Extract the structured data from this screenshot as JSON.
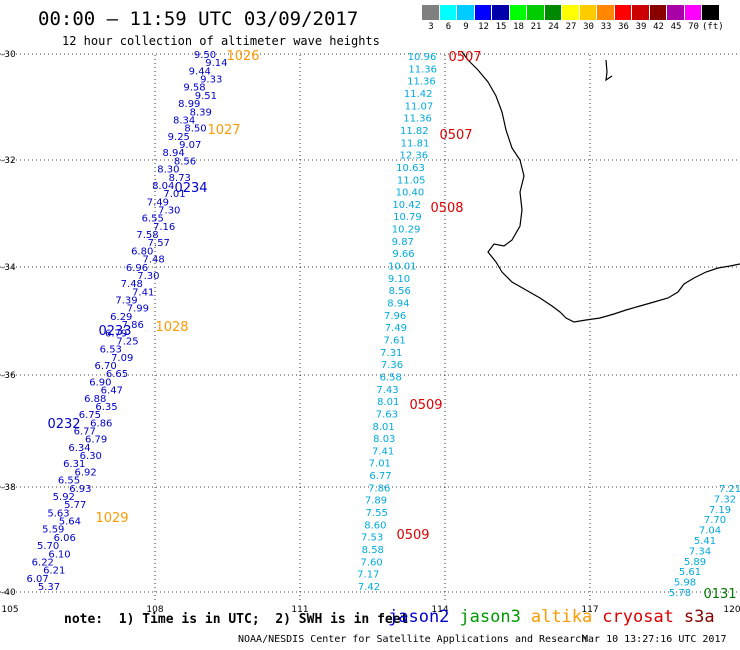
{
  "title": "00:00 – 11:59 UTC 03/09/2017",
  "subtitle": "12 hour collection of altimeter wave heights",
  "colorbar": {
    "labels": [
      "3",
      "6",
      "9",
      "12",
      "15",
      "18",
      "21",
      "24",
      "27",
      "30",
      "33",
      "36",
      "39",
      "42",
      "45",
      "70",
      "(ft)"
    ],
    "colors": [
      "#808080",
      "#00ffff",
      "#00ccff",
      "#0000ff",
      "#0000aa",
      "#00ff00",
      "#00cc00",
      "#008800",
      "#ffff00",
      "#ffcc00",
      "#ff8800",
      "#ff0000",
      "#cc0000",
      "#880000",
      "#aa00aa",
      "#ff00ff",
      "#000000"
    ]
  },
  "axes": {
    "lon_labels": [
      "105",
      "108",
      "111",
      "114",
      "117",
      "120"
    ],
    "lat_labels": [
      "-30",
      "-32",
      "-34",
      "-36",
      "-38",
      "-40"
    ]
  },
  "tracks": [
    {
      "name": "track-A",
      "color": "#0000cc",
      "values": [
        "9.50",
        "9.14",
        "9.44",
        "9.33",
        "9.58",
        "9.51",
        "8.99",
        "8.39",
        "8.34",
        "8.50",
        "9.25",
        "9.07",
        "8.94",
        "8.56",
        "8.30",
        "8.73",
        "8.04",
        "7.01",
        "7.49",
        "7.30",
        "6.55",
        "7.16",
        "7.58",
        "7.57",
        "6.80",
        "7.48",
        "6.96",
        "7.30",
        "7.48",
        "7.41",
        "7.39",
        "7.99",
        "6.29",
        "7.86",
        "6.79",
        "7.25",
        "6.53",
        "7.09",
        "6.70",
        "6.65",
        "6.90",
        "6.47",
        "6.88",
        "6.35",
        "6.75",
        "6.86",
        "6.77",
        "6.79",
        "6.34",
        "6.30",
        "6.31",
        "6.92",
        "6.55",
        "6.93",
        "5.92",
        "5.77",
        "5.63",
        "5.64",
        "5.59",
        "6.06",
        "5.70",
        "6.10",
        "6.22",
        "6.21",
        "6.07",
        "5.37"
      ]
    },
    {
      "name": "track-B",
      "color": "#00aadd",
      "values": [
        "10.96",
        "11.36",
        "11.36",
        "11.42",
        "11.07",
        "11.36",
        "11.82",
        "11.81",
        "12.36",
        "10.63",
        "11.05",
        "10.40",
        "10.42",
        "10.79",
        "10.29",
        "9.87",
        "9.66",
        "10.01",
        "9.10",
        "8.56",
        "8.94",
        "7.96",
        "7.49",
        "7.61",
        "7.31",
        "7.36",
        "6.58",
        "7.43",
        "8.01",
        "7.63",
        "8.01",
        "8.03",
        "7.41",
        "7.01",
        "6.77",
        "7.86",
        "7.89",
        "7.55",
        "8.60",
        "7.53",
        "8.58",
        "7.60",
        "7.17",
        "7.42"
      ]
    },
    {
      "name": "track-C",
      "color": "#00aadd",
      "values": [
        "7.21",
        "7.32",
        "7.19",
        "7.70",
        "7.04",
        "5.41",
        "7.34",
        "5.89",
        "5.61",
        "5.98",
        "5.78"
      ]
    }
  ],
  "time_labels": [
    {
      "text": "1026",
      "color": "#ff9900"
    },
    {
      "text": "1027",
      "color": "#ff9900"
    },
    {
      "text": "0234",
      "color": "#0000cc"
    },
    {
      "text": "1028",
      "color": "#ff9900"
    },
    {
      "text": "0233",
      "color": "#0000cc"
    },
    {
      "text": "0232",
      "color": "#0000cc"
    },
    {
      "text": "1029",
      "color": "#ff9900"
    },
    {
      "text": "0507",
      "color": "#dd0000"
    },
    {
      "text": "0507",
      "color": "#dd0000"
    },
    {
      "text": "0508",
      "color": "#dd0000"
    },
    {
      "text": "0509",
      "color": "#dd0000"
    },
    {
      "text": "0509",
      "color": "#dd0000"
    },
    {
      "text": "0131",
      "color": "#007700"
    }
  ],
  "note": "note:  1) Time is in UTC;  2) SWH is in feet",
  "legend": [
    {
      "label": "jason2",
      "color": "#0000cc"
    },
    {
      "label": "jason3",
      "color": "#009900"
    },
    {
      "label": "altika",
      "color": "#ff9900"
    },
    {
      "label": "cryosat",
      "color": "#dd0000"
    },
    {
      "label": "s3a",
      "color": "#880000"
    }
  ],
  "credit": "NOAA/NESDIS Center for Satellite Applications and Research",
  "credit_time": "Mar 10 13:27:16 UTC 2017"
}
